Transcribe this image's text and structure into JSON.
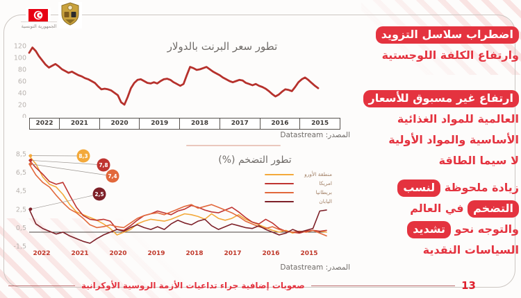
{
  "colors": {
    "accent": "#e4333f",
    "flag_red": "#e70013",
    "emblem_gold": "#c9a23c",
    "footer_line": "#b96a6a",
    "axis_label_gray": "#b8b2ae",
    "year_label_red": "#c0392b"
  },
  "header": {
    "country_label": "الجمهورية التونسية"
  },
  "chart_data": [
    {
      "type": "line",
      "title": "تطور سعر البرنت بالدولار",
      "source": "المصدر: Datastream",
      "x_axis_years": [
        "2022",
        "2021",
        "2020",
        "2019",
        "2018",
        "2017",
        "2016",
        "2015"
      ],
      "x_note": "time axis reversed: newest (2022) on left, oldest (2015) on right",
      "y_ticks": [
        120,
        100,
        80,
        60,
        40,
        20,
        0
      ],
      "ylim": [
        0,
        120
      ],
      "grid": false,
      "series": [
        {
          "name": "سعر البرنت بالدولار",
          "color": "#b6312c",
          "values": [
            108,
            117,
            111,
            102,
            95,
            88,
            83,
            86,
            89,
            85,
            80,
            77,
            74,
            76,
            73,
            70,
            68,
            65,
            63,
            60,
            57,
            51,
            46,
            47,
            46,
            44,
            40,
            36,
            24,
            20,
            33,
            48,
            57,
            62,
            63,
            60,
            57,
            56,
            58,
            56,
            60,
            63,
            64,
            62,
            58,
            55,
            52,
            55,
            70,
            84,
            82,
            79,
            80,
            82,
            84,
            80,
            76,
            73,
            70,
            66,
            63,
            60,
            58,
            60,
            62,
            61,
            57,
            55,
            53,
            55,
            52,
            50,
            47,
            43,
            38,
            34,
            37,
            42,
            46,
            45,
            43,
            50,
            58,
            63,
            66,
            62,
            57,
            52,
            48
          ]
        }
      ]
    },
    {
      "type": "line",
      "title": "تطور التضخم (%)",
      "source": "المصدر: Datastream",
      "x_axis_years": [
        "2022",
        "2021",
        "2020",
        "2019",
        "2018",
        "2017",
        "2016",
        "2015"
      ],
      "x_note": "time axis reversed: newest (2022) on left, oldest (2015) on right",
      "y_ticks": [
        {
          "label": "8,5",
          "value": 8.5
        },
        {
          "label": "6,5",
          "value": 6.5
        },
        {
          "label": "4,5",
          "value": 4.5
        },
        {
          "label": "2,5",
          "value": 2.5
        },
        {
          "label": "0,5",
          "value": 0.5
        },
        {
          "label": "-1,5",
          "value": -1.5
        }
      ],
      "ylim": [
        -1.5,
        8.5
      ],
      "zero_line": true,
      "grid": false,
      "legend_position": "right",
      "series": [
        {
          "name": "منطقة الأورو",
          "color": "#f3a93a",
          "latest_label": "8,3",
          "latest_value": 8.3,
          "values": [
            8.3,
            7.4,
            6.0,
            5.2,
            4.9,
            4.1,
            3.0,
            2.2,
            1.9,
            1.6,
            1.3,
            0.9,
            0.4,
            -0.3,
            0.0,
            0.3,
            0.9,
            1.2,
            1.4,
            1.3,
            1.2,
            1.4,
            1.7,
            2.0,
            1.9,
            1.7,
            1.4,
            2.0,
            1.5,
            1.3,
            1.5,
            1.9,
            1.4,
            1.1,
            0.8,
            0.5,
            0.2,
            0.0,
            0.2,
            -0.1,
            0.1,
            0.0,
            0.2,
            0.1,
            0.0
          ]
        },
        {
          "name": "امريكا",
          "color": "#bf3430",
          "latest_label": "7,8",
          "latest_value": 7.8,
          "values": [
            7.8,
            7.0,
            6.3,
            5.5,
            5.2,
            5.4,
            4.0,
            2.7,
            1.8,
            1.4,
            1.3,
            1.4,
            1.2,
            0.3,
            0.2,
            0.7,
            1.3,
            1.8,
            2.0,
            2.3,
            2.1,
            1.9,
            2.3,
            2.5,
            2.9,
            2.7,
            2.4,
            2.2,
            2.1,
            2.4,
            2.7,
            2.2,
            1.6,
            1.1,
            0.9,
            1.4,
            1.0,
            0.4,
            0.1,
            0.0,
            -0.1,
            0.1,
            0.2,
            0.1,
            0.2
          ]
        },
        {
          "name": "بريطانيا",
          "color": "#e2683b",
          "latest_label": "7,4",
          "latest_value": 7.4,
          "values": [
            7.4,
            6.2,
            5.4,
            4.9,
            4.0,
            3.2,
            2.5,
            2.1,
            1.5,
            0.8,
            0.5,
            0.6,
            0.8,
            0.6,
            0.5,
            1.0,
            1.5,
            1.8,
            2.0,
            2.1,
            1.9,
            2.2,
            2.5,
            2.8,
            3.0,
            2.6,
            2.8,
            3.0,
            2.7,
            2.4,
            2.1,
            1.7,
            1.2,
            0.9,
            0.6,
            0.4,
            0.6,
            0.3,
            0.1,
            0.0,
            0.1,
            0.0,
            0.2,
            -0.1,
            -0.4
          ]
        },
        {
          "name": "اليابان",
          "color": "#7d2028",
          "latest_label": "2,5",
          "latest_value": 2.5,
          "values": [
            2.5,
            0.9,
            0.4,
            0.1,
            -0.2,
            0.0,
            -0.4,
            -0.7,
            -1.0,
            -1.2,
            -0.7,
            -0.3,
            0.0,
            0.3,
            0.1,
            0.5,
            0.8,
            0.5,
            0.3,
            0.6,
            0.3,
            0.9,
            1.3,
            1.0,
            0.8,
            1.2,
            1.4,
            0.7,
            0.3,
            0.6,
            0.9,
            0.7,
            0.5,
            0.4,
            0.7,
            0.3,
            0.0,
            -0.3,
            -0.1,
            0.3,
            0.0,
            0.2,
            0.4,
            2.3,
            2.4
          ]
        }
      ]
    }
  ],
  "right_column": {
    "blocks": [
      {
        "lines": [
          [
            {
              "text": "اضطراب سلاسل التزويد",
              "hl": true
            }
          ],
          [
            {
              "text": "وارتفاع الكلفة اللوجستية",
              "hl": false
            }
          ]
        ]
      },
      {
        "lines": [
          [
            {
              "text": "ارتفاع غير مسبوق للأسعار",
              "hl": true
            }
          ],
          [
            {
              "text": "العالمية للمواد الغذائية",
              "hl": false
            }
          ],
          [
            {
              "text": "الأساسية والمواد الأولية",
              "hl": false
            }
          ],
          [
            {
              "text": "لا سيما الطاقة",
              "hl": false
            }
          ]
        ]
      },
      {
        "lines": [
          [
            {
              "text": "زيادة ملحوظة",
              "hl": false
            },
            {
              "text": "لنسب",
              "hl": true
            }
          ],
          [
            {
              "text": "التضخم",
              "hl": true
            },
            {
              "text": "في العالم",
              "hl": false
            }
          ],
          [
            {
              "text": "والتوجه نحو",
              "hl": false
            },
            {
              "text": "تشديد",
              "hl": true
            }
          ],
          [
            {
              "text": "السياسات النقدية",
              "hl": false
            }
          ]
        ]
      }
    ]
  },
  "footer": {
    "title": "صعوبات إضافية جراء تداعيات الأزمة الروسية الأوكرانية",
    "page_number": "13"
  }
}
